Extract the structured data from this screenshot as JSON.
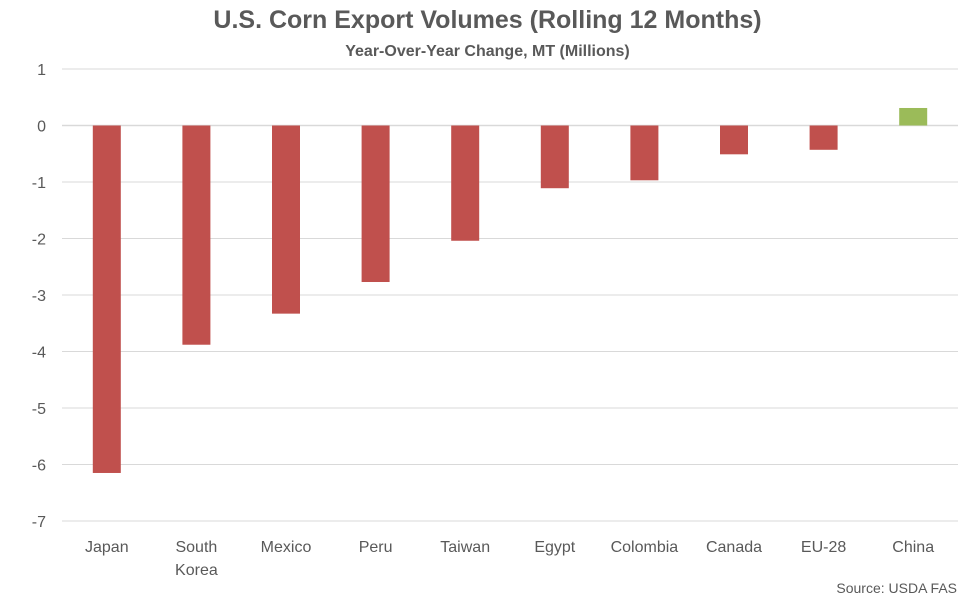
{
  "chart_data": {
    "type": "bar",
    "title": "U.S. Corn Export Volumes (Rolling 12 Months)",
    "subtitle": "Year-Over-Year Change, MT (Millions)",
    "categories": [
      "Japan",
      "South Korea",
      "Mexico",
      "Peru",
      "Taiwan",
      "Egypt",
      "Colombia",
      "Canada",
      "EU-28",
      "China"
    ],
    "category_lines": [
      [
        "Japan"
      ],
      [
        "South",
        "Korea"
      ],
      [
        "Mexico"
      ],
      [
        "Peru"
      ],
      [
        "Taiwan"
      ],
      [
        "Egypt"
      ],
      [
        "Colombia"
      ],
      [
        "Canada"
      ],
      [
        "EU-28"
      ],
      [
        "China"
      ]
    ],
    "values": [
      -6.15,
      -3.88,
      -3.33,
      -2.77,
      -2.04,
      -1.11,
      -0.97,
      -0.51,
      -0.43,
      0.31
    ],
    "ylim": [
      -7,
      1
    ],
    "yticks": [
      1,
      0,
      -1,
      -2,
      -3,
      -4,
      -5,
      -6,
      -7
    ],
    "grid": true,
    "legend": "none",
    "colors": {
      "negative": "#C0504D",
      "positive": "#9BBB59",
      "grid": "#D9D9D9",
      "text": "#595959"
    },
    "source": "Source: USDA FAS"
  }
}
